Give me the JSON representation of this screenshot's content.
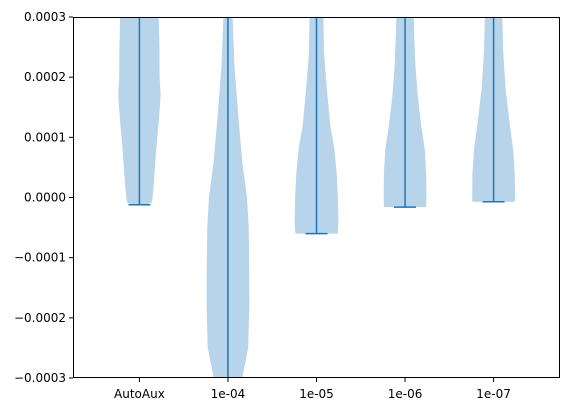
{
  "chart_data": {
    "type": "violin",
    "title": "",
    "xlabel": "",
    "ylabel": "",
    "categories": [
      "AutoAux",
      "1e-04",
      "1e-05",
      "1e-06",
      "1e-07"
    ],
    "ylim": [
      -0.0003,
      0.0003
    ],
    "yticks": [
      -0.0003,
      -0.0002,
      -0.0001,
      0.0,
      0.0001,
      0.0002,
      0.0003
    ],
    "ytick_labels": [
      "−0.0003",
      "−0.0002",
      "−0.0001",
      "0.0000",
      "0.0001",
      "0.0002",
      "0.0003"
    ],
    "grid": false,
    "legend": "none",
    "colors": {
      "body": "#b7d4ea",
      "line": "#1f77b4"
    },
    "violins": [
      {
        "name": "AutoAux",
        "min": -1.2e-05,
        "max": 0.0003,
        "profile": [
          [
            -1.2e-05,
            0.3
          ],
          [
            -8e-06,
            0.55
          ],
          [
            2e-05,
            0.62
          ],
          [
            8e-05,
            0.73
          ],
          [
            0.00013,
            0.85
          ],
          [
            0.00017,
            0.92
          ],
          [
            0.0002,
            0.88
          ],
          [
            0.00025,
            0.87
          ],
          [
            0.0003,
            0.84
          ]
        ]
      },
      {
        "name": "1e-04",
        "min": -0.0003,
        "max": 0.0003,
        "profile": [
          [
            -0.0003,
            0.62
          ],
          [
            -0.00025,
            0.88
          ],
          [
            -0.00018,
            0.93
          ],
          [
            -0.0001,
            0.92
          ],
          [
            -5e-05,
            0.9
          ],
          [
            0.0,
            0.83
          ],
          [
            6e-05,
            0.62
          ],
          [
            0.00015,
            0.42
          ],
          [
            0.00022,
            0.28
          ],
          [
            0.0003,
            0.2
          ]
        ]
      },
      {
        "name": "1e-05",
        "min": -6e-05,
        "max": 0.0003,
        "profile": [
          [
            -6e-05,
            0.92
          ],
          [
            -4e-05,
            0.95
          ],
          [
            0.0,
            0.93
          ],
          [
            4e-05,
            0.88
          ],
          [
            8e-05,
            0.78
          ],
          [
            0.00012,
            0.6
          ],
          [
            0.00018,
            0.45
          ],
          [
            0.00024,
            0.33
          ],
          [
            0.0003,
            0.3
          ]
        ]
      },
      {
        "name": "1e-06",
        "min": -1.6e-05,
        "max": 0.0003,
        "profile": [
          [
            -1.6e-05,
            0.92
          ],
          [
            0.0,
            0.93
          ],
          [
            4e-05,
            0.92
          ],
          [
            8e-05,
            0.86
          ],
          [
            0.00012,
            0.7
          ],
          [
            0.00017,
            0.55
          ],
          [
            0.00022,
            0.45
          ],
          [
            0.00027,
            0.4
          ],
          [
            0.0003,
            0.38
          ]
        ]
      },
      {
        "name": "1e-07",
        "min": -7e-06,
        "max": 0.0003,
        "profile": [
          [
            -7e-06,
            0.92
          ],
          [
            0.0,
            0.93
          ],
          [
            4e-05,
            0.92
          ],
          [
            8e-05,
            0.85
          ],
          [
            0.00013,
            0.68
          ],
          [
            0.00018,
            0.52
          ],
          [
            0.00024,
            0.42
          ],
          [
            0.0003,
            0.38
          ]
        ]
      }
    ]
  }
}
